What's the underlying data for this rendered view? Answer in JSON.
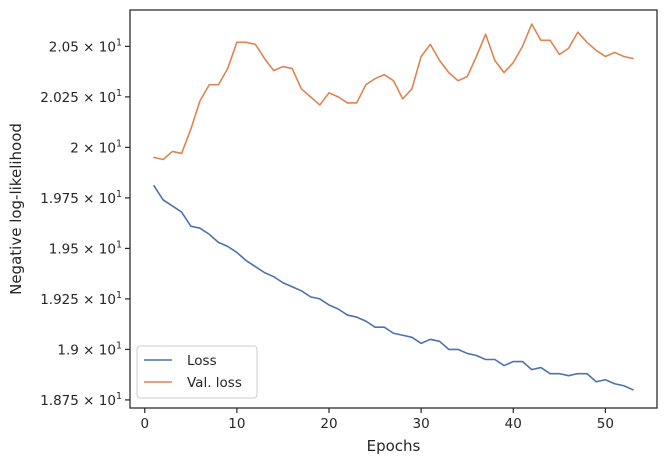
{
  "chart_data": {
    "type": "line",
    "xlabel": "Epochs",
    "ylabel": "Negative log-likelihood",
    "xlim": [
      -1.6,
      55.6
    ],
    "ylim": [
      18.71,
      20.68
    ],
    "x_ticks": [
      {
        "value": 0,
        "label": "0"
      },
      {
        "value": 10,
        "label": "10"
      },
      {
        "value": 20,
        "label": "20"
      },
      {
        "value": 30,
        "label": "30"
      },
      {
        "value": 40,
        "label": "40"
      },
      {
        "value": 50,
        "label": "50"
      }
    ],
    "y_ticks": [
      {
        "value": 18.75,
        "mantissa": "1.875",
        "base": "10",
        "exp": "1"
      },
      {
        "value": 19.0,
        "mantissa": "1.9",
        "base": "10",
        "exp": "1"
      },
      {
        "value": 19.25,
        "mantissa": "1.925",
        "base": "10",
        "exp": "1"
      },
      {
        "value": 19.5,
        "mantissa": "1.95",
        "base": "10",
        "exp": "1"
      },
      {
        "value": 19.75,
        "mantissa": "1.975",
        "base": "10",
        "exp": "1"
      },
      {
        "value": 20.0,
        "mantissa": "2",
        "base": "10",
        "exp": "1"
      },
      {
        "value": 20.25,
        "mantissa": "2.025",
        "base": "10",
        "exp": "1"
      },
      {
        "value": 20.5,
        "mantissa": "2.05",
        "base": "10",
        "exp": "1"
      }
    ],
    "x": [
      1,
      2,
      3,
      4,
      5,
      6,
      7,
      8,
      9,
      10,
      11,
      12,
      13,
      14,
      15,
      16,
      17,
      18,
      19,
      20,
      21,
      22,
      23,
      24,
      25,
      26,
      27,
      28,
      29,
      30,
      31,
      32,
      33,
      34,
      35,
      36,
      37,
      38,
      39,
      40,
      41,
      42,
      43,
      44,
      45,
      46,
      47,
      48,
      49,
      50,
      51,
      52,
      53
    ],
    "series": [
      {
        "name": "Loss",
        "color": "#4c72b0",
        "values": [
          19.81,
          19.74,
          19.71,
          19.68,
          19.61,
          19.6,
          19.57,
          19.53,
          19.51,
          19.48,
          19.44,
          19.41,
          19.38,
          19.36,
          19.33,
          19.31,
          19.29,
          19.26,
          19.25,
          19.22,
          19.2,
          19.17,
          19.16,
          19.14,
          19.11,
          19.11,
          19.08,
          19.07,
          19.06,
          19.03,
          19.05,
          19.04,
          19.0,
          19.0,
          18.98,
          18.97,
          18.95,
          18.95,
          18.92,
          18.94,
          18.94,
          18.9,
          18.91,
          18.88,
          18.88,
          18.87,
          18.88,
          18.88,
          18.84,
          18.85,
          18.83,
          18.82,
          18.8
        ]
      },
      {
        "name": "Val. loss",
        "color": "#dd8452",
        "values": [
          19.95,
          19.94,
          19.98,
          19.97,
          20.09,
          20.23,
          20.31,
          20.31,
          20.39,
          20.52,
          20.52,
          20.51,
          20.44,
          20.38,
          20.4,
          20.39,
          20.29,
          20.25,
          20.21,
          20.27,
          20.25,
          20.22,
          20.22,
          20.31,
          20.34,
          20.36,
          20.33,
          20.24,
          20.29,
          20.45,
          20.51,
          20.43,
          20.37,
          20.33,
          20.35,
          20.45,
          20.56,
          20.43,
          20.37,
          20.42,
          20.5,
          20.61,
          20.53,
          20.53,
          20.46,
          20.49,
          20.57,
          20.52,
          20.48,
          20.45,
          20.47,
          20.45,
          20.44
        ]
      }
    ],
    "legend": "lower-left",
    "grid": false
  }
}
